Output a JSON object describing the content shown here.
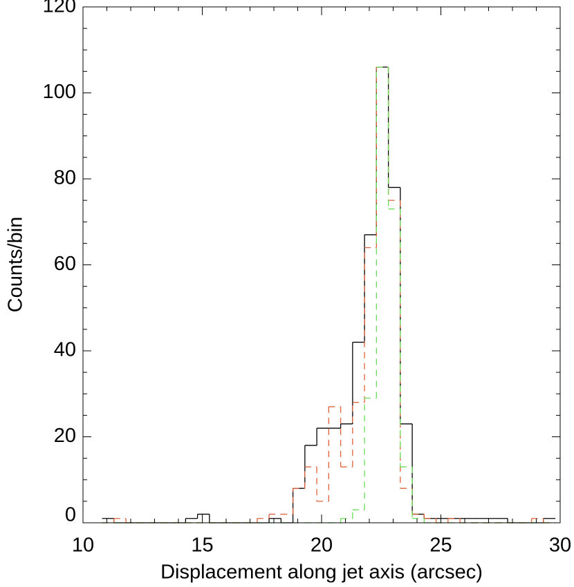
{
  "chart_data": {
    "type": "histogram",
    "x_label": "Displacement along jet axis (arcsec)",
    "y_label": "Counts/bin",
    "bins": [
      10.8,
      11.3,
      11.8,
      12.3,
      12.8,
      13.3,
      13.8,
      14.3,
      14.8,
      15.3,
      15.8,
      16.3,
      16.8,
      17.3,
      17.8,
      18.3,
      18.8,
      19.3,
      19.8,
      20.3,
      20.8,
      21.3,
      21.8,
      22.3,
      22.8,
      23.3,
      23.8,
      24.3,
      24.8,
      25.3,
      25.8,
      26.3,
      26.8,
      27.3,
      27.8,
      28.3,
      28.8,
      29.3,
      29.8
    ],
    "series": [
      {
        "color": "#000000",
        "dash": "none",
        "values": [
          1,
          0,
          0,
          0,
          0,
          0,
          0,
          1,
          2,
          0,
          0,
          0,
          0,
          0,
          1,
          0,
          8,
          18,
          22,
          22,
          23,
          42,
          67,
          106,
          78,
          23,
          2,
          1,
          1,
          1,
          1,
          1,
          1,
          1,
          0,
          0,
          0,
          1
        ]
      },
      {
        "color": "#e0603a",
        "dash": "9,7",
        "values": [
          0,
          1,
          0,
          0,
          0,
          0,
          0,
          0,
          0,
          0,
          0,
          0,
          0,
          1,
          2,
          2,
          8,
          13,
          5,
          27,
          13,
          28,
          64,
          106,
          75,
          8,
          2,
          1,
          0,
          1,
          0,
          0,
          0,
          0,
          0,
          0,
          1,
          0
        ]
      },
      {
        "color": "#66dd55",
        "dash": "9,7",
        "values": [
          0,
          0,
          0,
          0,
          0,
          0,
          0,
          0,
          0,
          0,
          0,
          0,
          0,
          0,
          0,
          0,
          0,
          0,
          0,
          0,
          1,
          3,
          29,
          106,
          73,
          13,
          1,
          0,
          0,
          0,
          0,
          0,
          0,
          0,
          0,
          0,
          0,
          0
        ]
      }
    ],
    "xlim": [
      10,
      30
    ],
    "xticks": [
      10,
      15,
      20,
      25,
      30
    ],
    "ylim": [
      0,
      120
    ],
    "yticks": [
      0,
      20,
      40,
      60,
      80,
      100,
      120
    ]
  }
}
